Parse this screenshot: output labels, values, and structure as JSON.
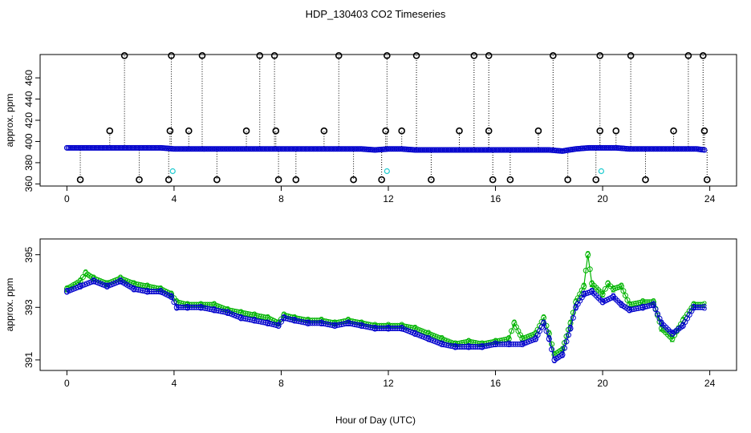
{
  "title": "HDP_130403  CO2 Timeseries",
  "xlabel": "Hour of Day (UTC)",
  "colors": {
    "axis": "#000000",
    "series_blue": "#0000cc",
    "series_green": "#00b400",
    "cyan": "#1ecbd0",
    "outlier": "#000000"
  },
  "chart_data": [
    {
      "type": "scatter",
      "name": "top",
      "ylabel": "approx. ppm",
      "xlim": [
        -1,
        25
      ],
      "ylim": [
        358,
        482
      ],
      "xticks": [
        "0",
        "4",
        "8",
        "12",
        "16",
        "20",
        "24"
      ],
      "yticks": [
        "360",
        "380",
        "400",
        "420",
        "440",
        "460"
      ],
      "baseline_series": {
        "name": "blue",
        "x": [
          0,
          0.5,
          1,
          1.5,
          2,
          2.5,
          3,
          3.5,
          4,
          4.5,
          5,
          5.5,
          6,
          6.5,
          7,
          7.5,
          8,
          8.5,
          9,
          9.5,
          10,
          10.5,
          11,
          11.5,
          12,
          12.5,
          13,
          13.5,
          14,
          14.5,
          15,
          15.5,
          16,
          16.5,
          17,
          17.5,
          18,
          18.5,
          19,
          19.5,
          20,
          20.5,
          21,
          21.5,
          22,
          22.5,
          23,
          23.5,
          23.8
        ],
        "y": [
          394,
          394,
          394,
          394,
          394,
          394,
          394,
          394,
          393,
          393,
          393,
          393,
          393,
          393,
          393,
          393,
          393,
          393,
          393,
          393,
          393,
          393,
          393,
          392,
          393,
          393,
          392,
          392,
          392,
          392,
          392,
          392,
          392,
          392,
          392,
          392,
          392,
          391,
          393,
          394,
          394,
          394,
          393,
          393,
          393,
          393,
          393,
          393,
          392
        ]
      },
      "outliers_high": {
        "x": [
          2.15,
          3.9,
          5.05,
          7.2,
          7.75,
          10.15,
          11.95,
          13.05,
          15.2,
          15.75,
          18.15,
          19.9,
          21.05,
          23.2,
          23.75
        ],
        "y": [
          481,
          481,
          481,
          481,
          481,
          481,
          481,
          481,
          481,
          481,
          481,
          481,
          481,
          481,
          481
        ]
      },
      "outliers_mid": {
        "x": [
          1.6,
          3.85,
          4.55,
          6.7,
          7.8,
          9.6,
          11.9,
          12.5,
          14.65,
          15.75,
          17.6,
          19.9,
          20.5,
          22.65,
          23.8
        ],
        "y": [
          410,
          410,
          410,
          410,
          410,
          410,
          410,
          410,
          410,
          410,
          410,
          410,
          410,
          410,
          410
        ]
      },
      "outliers_low": {
        "x": [
          0.5,
          2.7,
          3.8,
          5.6,
          7.9,
          8.55,
          10.7,
          11.75,
          13.6,
          15.9,
          16.55,
          18.7,
          19.75,
          21.6,
          23.9
        ],
        "y": [
          364,
          364,
          364,
          364,
          364,
          364,
          364,
          364,
          364,
          364,
          364,
          364,
          364,
          364,
          364
        ]
      },
      "cyan_points": {
        "x": [
          3.95,
          11.95,
          19.95
        ],
        "y": [
          372,
          372,
          372
        ]
      }
    },
    {
      "type": "line",
      "name": "bottom",
      "ylabel": "approx. ppm",
      "xlim": [
        -1,
        25
      ],
      "ylim": [
        390.6,
        395.6
      ],
      "xticks": [
        "0",
        "4",
        "8",
        "12",
        "16",
        "20",
        "24"
      ],
      "yticks": [
        "391",
        "393",
        "395"
      ],
      "series": [
        {
          "name": "3",
          "marker": "3",
          "x": [
            0,
            0.5,
            1,
            1.5,
            2,
            2.5,
            3,
            3.5,
            3.9,
            4.1,
            4.5,
            5,
            5.5,
            6,
            6.5,
            7,
            7.5,
            7.9,
            8.1,
            8.5,
            9,
            9.5,
            10,
            10.5,
            11,
            11.5,
            12,
            12.5,
            13,
            13.5,
            14,
            14.5,
            15,
            15.5,
            16,
            16.5,
            17,
            17.5,
            17.8,
            18,
            18.2,
            18.5,
            18.8,
            19,
            19.3,
            19.6,
            20,
            20.4,
            20.7,
            21,
            21.5,
            21.9,
            22.2,
            22.6,
            23,
            23.4,
            23.8
          ],
          "y": [
            393.6,
            393.8,
            394.0,
            393.8,
            394.0,
            393.7,
            393.6,
            393.6,
            393.4,
            393.0,
            393.0,
            393.0,
            392.9,
            392.8,
            392.6,
            392.5,
            392.4,
            392.3,
            392.6,
            392.5,
            392.4,
            392.4,
            392.3,
            392.4,
            392.3,
            392.2,
            392.2,
            392.2,
            392.0,
            391.8,
            391.6,
            391.5,
            391.5,
            391.5,
            391.6,
            391.6,
            391.6,
            391.8,
            392.4,
            391.8,
            391.0,
            391.2,
            392.2,
            393.0,
            393.5,
            393.6,
            393.2,
            393.4,
            393.1,
            392.9,
            393.0,
            393.1,
            392.4,
            392.0,
            392.3,
            393.0,
            393.0
          ]
        },
        {
          "name": "2",
          "marker": "2",
          "x": [
            0,
            0.5,
            0.7,
            1,
            1.5,
            2,
            2.5,
            3,
            3.5,
            3.9,
            4.1,
            4.5,
            5,
            5.5,
            6,
            6.5,
            7,
            7.5,
            7.9,
            8.1,
            8.5,
            9,
            9.5,
            10,
            10.5,
            11,
            11.5,
            12,
            12.5,
            13,
            13.5,
            14,
            14.5,
            15,
            15.5,
            16,
            16.5,
            16.7,
            17,
            17.5,
            17.8,
            18,
            18.2,
            18.5,
            18.8,
            19,
            19.3,
            19.45,
            19.6,
            20,
            20.2,
            20.4,
            20.7,
            21,
            21.5,
            21.9,
            22.2,
            22.6,
            23,
            23.4,
            23.8
          ],
          "y": [
            393.7,
            394.0,
            394.3,
            394.1,
            393.9,
            394.1,
            393.9,
            393.8,
            393.7,
            393.5,
            393.2,
            393.1,
            393.1,
            393.1,
            392.9,
            392.8,
            392.7,
            392.6,
            392.4,
            392.7,
            392.6,
            392.5,
            392.5,
            392.4,
            392.5,
            392.4,
            392.3,
            392.3,
            392.3,
            392.2,
            392.0,
            391.8,
            391.6,
            391.7,
            391.6,
            391.7,
            391.8,
            392.4,
            391.8,
            392.0,
            392.6,
            392.0,
            391.2,
            391.4,
            392.4,
            393.2,
            393.8,
            395.0,
            393.9,
            393.5,
            393.9,
            393.7,
            393.8,
            393.1,
            393.2,
            393.2,
            392.2,
            391.8,
            392.5,
            393.1,
            393.1
          ]
        }
      ]
    }
  ]
}
